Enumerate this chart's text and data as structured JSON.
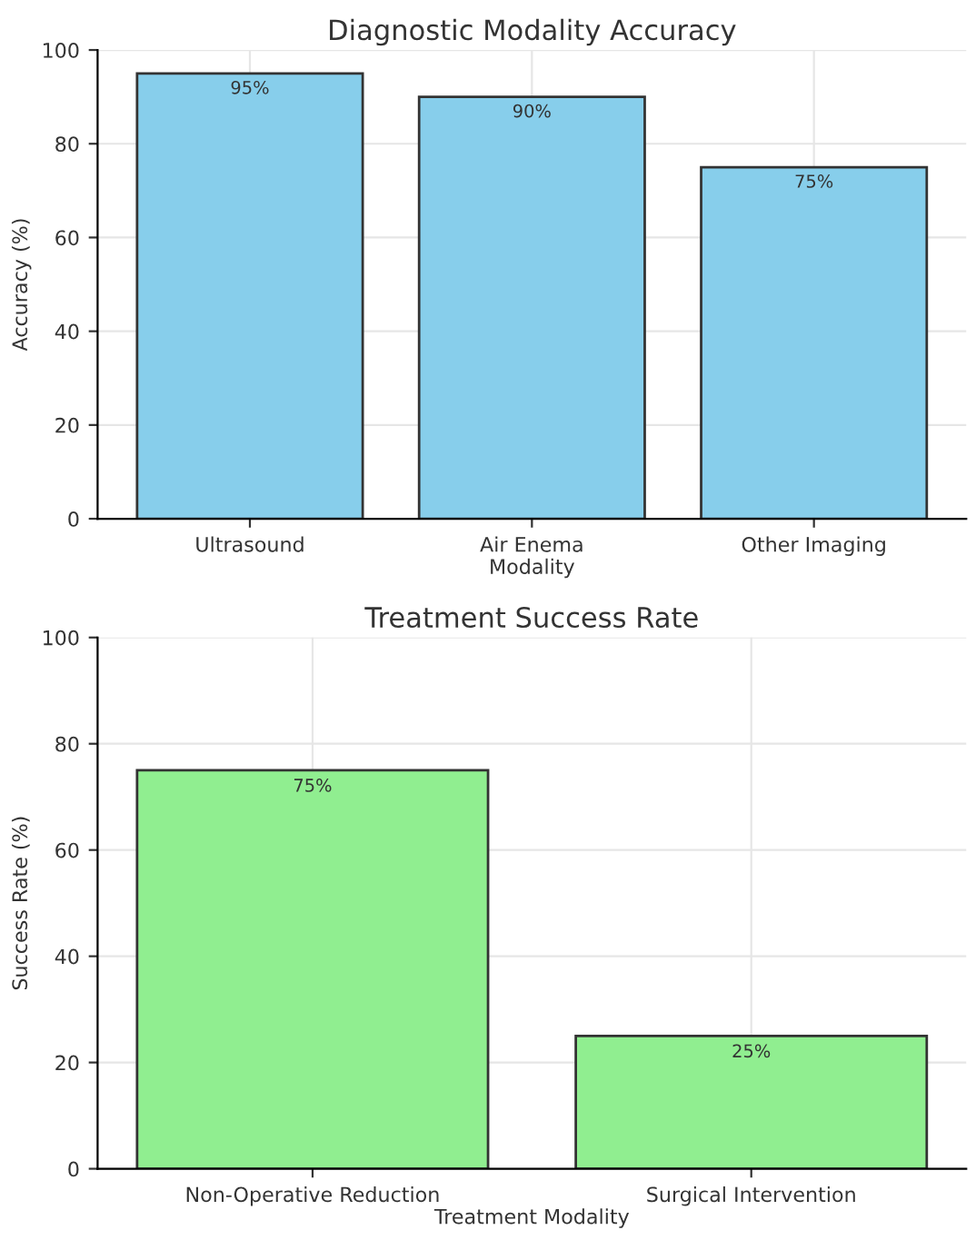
{
  "chart_data": [
    {
      "type": "bar",
      "title": "Diagnostic Modality Accuracy",
      "xlabel": "Modality",
      "ylabel": "Accuracy (%)",
      "categories": [
        "Ultrasound",
        "Air Enema",
        "Other Imaging"
      ],
      "values": [
        95,
        90,
        75
      ],
      "value_labels": [
        "95%",
        "90%",
        "75%"
      ],
      "color": "#87ceeb",
      "ylim": [
        0,
        100
      ],
      "yticks": [
        0,
        20,
        40,
        60,
        80,
        100
      ],
      "grid": true
    },
    {
      "type": "bar",
      "title": "Treatment Success Rate",
      "xlabel": "Treatment Modality",
      "ylabel": "Success Rate (%)",
      "categories": [
        "Non-Operative Reduction",
        "Surgical Intervention"
      ],
      "values": [
        75,
        25
      ],
      "value_labels": [
        "75%",
        "25%"
      ],
      "color": "#90ee90",
      "ylim": [
        0,
        100
      ],
      "yticks": [
        0,
        20,
        40,
        60,
        80,
        100
      ],
      "grid": true
    }
  ]
}
